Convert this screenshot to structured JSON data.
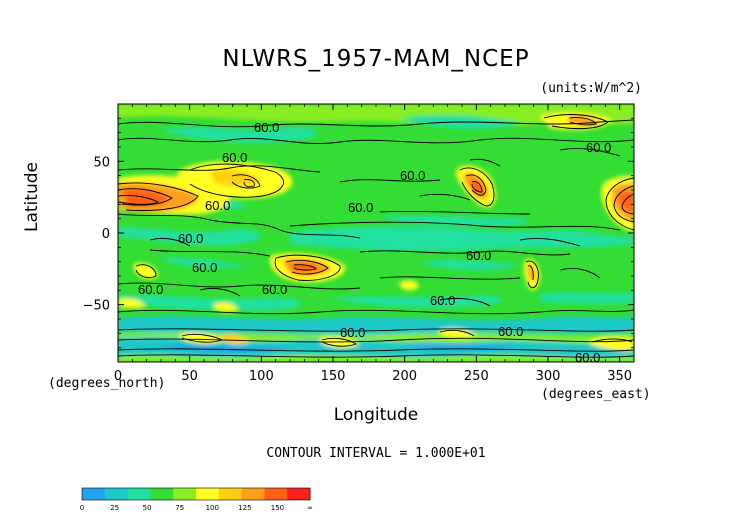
{
  "chart_data": {
    "type": "heatmap",
    "title": "NLWRS_1957-MAM_NCEP",
    "units": "(units:W/m^2)",
    "xlabel": "Longitude",
    "ylabel": "Latitude",
    "x_comment": "(degrees_east)",
    "y_comment": "(degrees_north)",
    "xlim": [
      0,
      360
    ],
    "ylim": [
      -90,
      90
    ],
    "x_ticks": [
      0,
      50,
      100,
      150,
      200,
      250,
      300,
      350
    ],
    "x_tick_labels": [
      "0",
      "50",
      "100",
      "150",
      "200",
      "250",
      "300",
      "350"
    ],
    "y_ticks": [
      50,
      0,
      -50
    ],
    "y_tick_labels": [
      "50",
      "0",
      "−50"
    ],
    "contour_interval_text": "CONTOUR INTERVAL = 1.000E+01",
    "contour_labels": [
      "60.0",
      "60.0",
      "60.0",
      "60.0",
      "60.0",
      "60.0",
      "60.0",
      "60.0",
      "60.0",
      "60.0",
      "60.0",
      "60.0",
      "60.0",
      "60.0",
      "60.0"
    ],
    "colorbar": {
      "levels": [
        0,
        25,
        50,
        75,
        100,
        125,
        150,
        "∞"
      ],
      "level_labels": [
        "0",
        "25",
        "50",
        "75",
        "100",
        "125",
        "150",
        "∞"
      ],
      "colors": [
        "#1fa2f0",
        "#1cc8c8",
        "#22e0a0",
        "#33dd33",
        "#88ee22",
        "#ffff22",
        "#ffd011",
        "#ffa01a",
        "#ff6018",
        "#ff2020"
      ]
    },
    "background_value": 60,
    "features": [
      {
        "lon": 15,
        "lat": 22,
        "value": 150
      },
      {
        "lon": 75,
        "lat": 33,
        "value": 110
      },
      {
        "lon": 125,
        "lat": -25,
        "value": 135
      },
      {
        "lon": 250,
        "lat": 32,
        "value": 140
      },
      {
        "lon": 352,
        "lat": 22,
        "value": 150
      },
      {
        "lon": 20,
        "lat": -30,
        "value": 110
      },
      {
        "lon": 290,
        "lat": -28,
        "value": 130
      },
      {
        "lon": 335,
        "lat": 78,
        "value": 120
      },
      {
        "lon": 200,
        "lat": 8,
        "value": 45
      },
      {
        "lon": 110,
        "lat": 0,
        "value": 45
      }
    ]
  }
}
